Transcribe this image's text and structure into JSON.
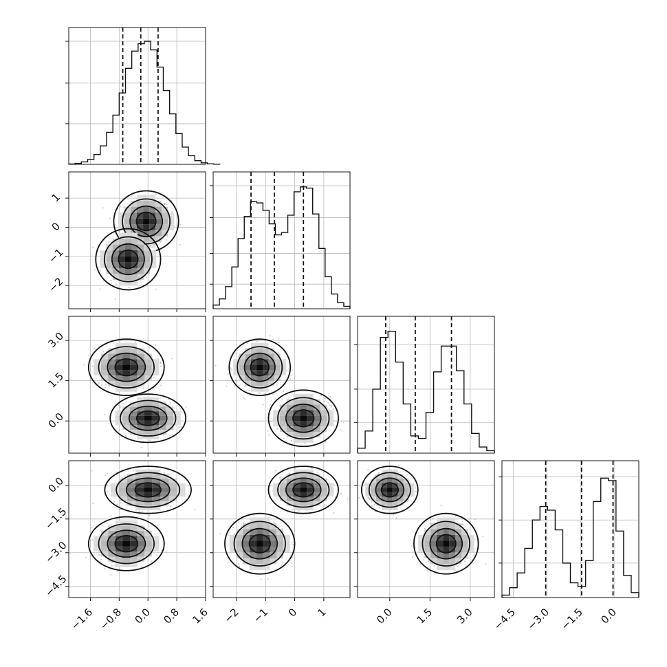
{
  "chart_data": {
    "type": "corner",
    "variables": 4,
    "grid": true,
    "quantile_line_style": "dashed",
    "axis_tick_labels": {
      "x": {
        "0": [
          "−1.6",
          "−0.8",
          "0.0",
          "0.8",
          "1.6"
        ],
        "1": [
          "−2",
          "−1",
          "0",
          "1"
        ],
        "2": [
          "0.0",
          "1.5",
          "3.0"
        ],
        "3": [
          "−4.5",
          "−3.0",
          "−1.5",
          "0.0"
        ]
      },
      "y": {
        "1": [
          "1",
          "0",
          "−1",
          "−2"
        ],
        "2": [
          "3.0",
          "1.5",
          "0.0"
        ],
        "3": [
          "0.0",
          "−1.5",
          "−3.0",
          "−4.5"
        ]
      }
    },
    "axes": [
      {
        "range": [
          -2.2,
          1.6
        ],
        "ticks": [
          -1.6,
          -0.8,
          0.0,
          0.8,
          1.6
        ]
      },
      {
        "range": [
          -2.8,
          1.9
        ],
        "ticks": [
          -2,
          -1,
          0,
          1
        ]
      },
      {
        "range": [
          -1.2,
          3.9
        ],
        "ticks": [
          0.0,
          1.5,
          3.0
        ]
      },
      {
        "range": [
          -5.0,
          1.1
        ],
        "ticks": [
          -4.5,
          -3.0,
          -1.5,
          0.0
        ]
      }
    ],
    "marginals": [
      {
        "variable": 0,
        "bins": [
          -2.2,
          2.0
        ],
        "counts": [
          0.003,
          0.008,
          0.02,
          0.04,
          0.08,
          0.15,
          0.26,
          0.4,
          0.58,
          0.78,
          0.92,
          0.98,
          1.0,
          0.93,
          0.79,
          0.6,
          0.41,
          0.25,
          0.14,
          0.07,
          0.03,
          0.012,
          0.004,
          0.001
        ],
        "quantiles": [
          -0.7,
          -0.2,
          0.28
        ],
        "y_ticks_fraction": [
          0.33,
          0.66,
          1.0
        ]
      },
      {
        "variable": 1,
        "bins": [
          -2.8,
          1.9
        ],
        "counts": [
          0.03,
          0.08,
          0.18,
          0.34,
          0.57,
          0.75,
          0.87,
          0.86,
          0.8,
          0.69,
          0.6,
          0.62,
          0.76,
          0.95,
          0.99,
          0.98,
          0.77,
          0.49,
          0.26,
          0.12,
          0.05,
          0.02
        ],
        "quantiles": [
          -1.5,
          -0.7,
          0.3
        ],
        "y_ticks_fraction": [
          0.2,
          0.45,
          0.74,
          1.0
        ]
      },
      {
        "variable": 2,
        "bins": [
          -1.2,
          3.9
        ],
        "counts": [
          0.04,
          0.18,
          0.52,
          0.94,
          0.99,
          0.74,
          0.4,
          0.14,
          0.12,
          0.33,
          0.66,
          0.87,
          0.87,
          0.67,
          0.4,
          0.16,
          0.05,
          0.02
        ],
        "quantiles": [
          -0.15,
          0.95,
          2.3
        ],
        "y_ticks_fraction": [
          0.25,
          0.52,
          0.88
        ]
      },
      {
        "variable": 3,
        "bins": [
          -5.0,
          1.1
        ],
        "counts": [
          0.02,
          0.08,
          0.2,
          0.4,
          0.63,
          0.74,
          0.71,
          0.55,
          0.28,
          0.12,
          0.09,
          0.3,
          0.78,
          0.97,
          0.95,
          0.54,
          0.18,
          0.04
        ],
        "quantiles": [
          -3.05,
          -1.45,
          -0.05
        ],
        "y_ticks_fraction": [
          0.28,
          0.63,
          0.98
        ]
      }
    ],
    "joints": [
      {
        "x_var": 0,
        "y_var": 1,
        "modes": [
          {
            "center": [
              -0.05,
              0.2
            ],
            "sigma": [
              0.3,
              0.35
            ],
            "weight": 1.0
          },
          {
            "center": [
              -0.55,
              -1.1
            ],
            "sigma": [
              0.3,
              0.35
            ],
            "weight": 0.95
          }
        ],
        "contour_scales": [
          0.9,
          1.5,
          2.2,
          3.0
        ]
      },
      {
        "x_var": 0,
        "y_var": 2,
        "modes": [
          {
            "center": [
              -0.6,
              2.0
            ],
            "sigma": [
              0.35,
              0.35
            ],
            "weight": 1.0
          },
          {
            "center": [
              0.0,
              0.1
            ],
            "sigma": [
              0.35,
              0.3
            ],
            "weight": 1.0
          }
        ],
        "contour_scales": [
          0.9,
          1.5,
          2.2,
          3.0
        ]
      },
      {
        "x_var": 1,
        "y_var": 2,
        "modes": [
          {
            "center": [
              -1.2,
              2.0
            ],
            "sigma": [
              0.35,
              0.35
            ],
            "weight": 1.0
          },
          {
            "center": [
              0.3,
              0.1
            ],
            "sigma": [
              0.4,
              0.35
            ],
            "weight": 1.0
          }
        ],
        "contour_scales": [
          0.9,
          1.5,
          2.2,
          3.0
        ]
      },
      {
        "x_var": 0,
        "y_var": 3,
        "modes": [
          {
            "center": [
              0.0,
              -0.2
            ],
            "sigma": [
              0.4,
              0.35
            ],
            "weight": 1.0
          },
          {
            "center": [
              -0.6,
              -2.6
            ],
            "sigma": [
              0.35,
              0.4
            ],
            "weight": 1.0
          }
        ],
        "contour_scales": [
          0.9,
          1.5,
          2.2,
          3.0
        ]
      },
      {
        "x_var": 1,
        "y_var": 3,
        "modes": [
          {
            "center": [
              0.3,
              -0.2
            ],
            "sigma": [
              0.4,
              0.35
            ],
            "weight": 1.0
          },
          {
            "center": [
              -1.2,
              -2.6
            ],
            "sigma": [
              0.4,
              0.45
            ],
            "weight": 1.0
          }
        ],
        "contour_scales": [
          0.9,
          1.5,
          2.2,
          3.0
        ]
      },
      {
        "x_var": 2,
        "y_var": 3,
        "modes": [
          {
            "center": [
              0.0,
              -0.2
            ],
            "sigma": [
              0.35,
              0.35
            ],
            "weight": 1.0
          },
          {
            "center": [
              2.1,
              -2.6
            ],
            "sigma": [
              0.4,
              0.45
            ],
            "weight": 1.0
          }
        ],
        "contour_scales": [
          0.9,
          1.5,
          2.2,
          3.0
        ]
      }
    ]
  }
}
